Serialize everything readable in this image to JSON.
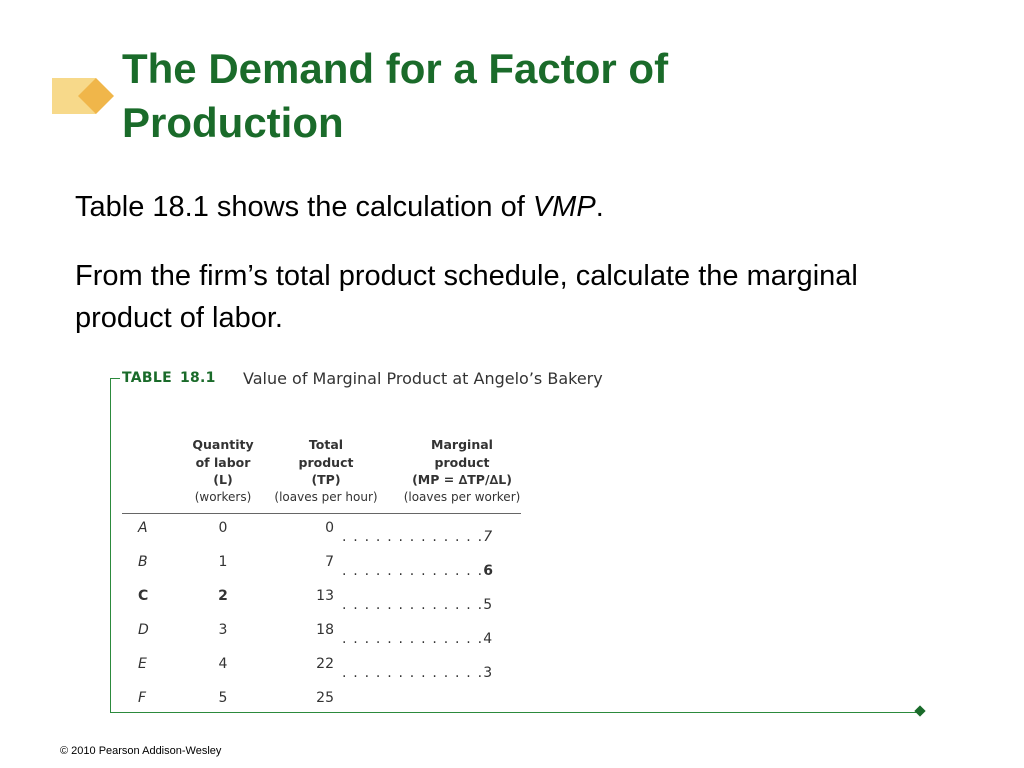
{
  "slide": {
    "title_line1": "The Demand for a Factor of",
    "title_line2": "Production",
    "para1_pre": "Table 18.1 shows the calculation of ",
    "para1_em": "VMP",
    "para1_post": ".",
    "para2": "From the firm’s total product schedule, calculate the marginal product of labor.",
    "footer": "© 2010 Pearson Addison-Wesley",
    "colors": {
      "title": "#1a6b2a",
      "frame": "#2c8a3d",
      "deco_light": "#f7d98a",
      "deco_dark": "#f0b64a"
    }
  },
  "table": {
    "tag_label": "TABLE",
    "tag_number": "18.1",
    "caption": "Value of Marginal Product at Angelo’s Bakery",
    "headers": {
      "qty": [
        "Quantity",
        "of labor",
        "(L)",
        "(workers)"
      ],
      "tp": [
        "Total",
        "product",
        "(TP)",
        "(loaves per hour)"
      ],
      "mp": [
        "Marginal",
        "product",
        "(MP = ∆TP/∆L)",
        "(loaves per worker)"
      ]
    },
    "rows": [
      {
        "label": "A",
        "qty": "0",
        "tp": "0"
      },
      {
        "label": "B",
        "qty": "1",
        "tp": "7"
      },
      {
        "label": "C",
        "qty": "2",
        "tp": "13"
      },
      {
        "label": "D",
        "qty": "3",
        "tp": "18"
      },
      {
        "label": "E",
        "qty": "4",
        "tp": "22"
      },
      {
        "label": "F",
        "qty": "5",
        "tp": "25"
      }
    ],
    "mp_dots": ". . . . . . . . . . . . .",
    "mp_values": [
      "7",
      "6",
      "5",
      "4",
      "3"
    ],
    "highlight_row": "C"
  }
}
